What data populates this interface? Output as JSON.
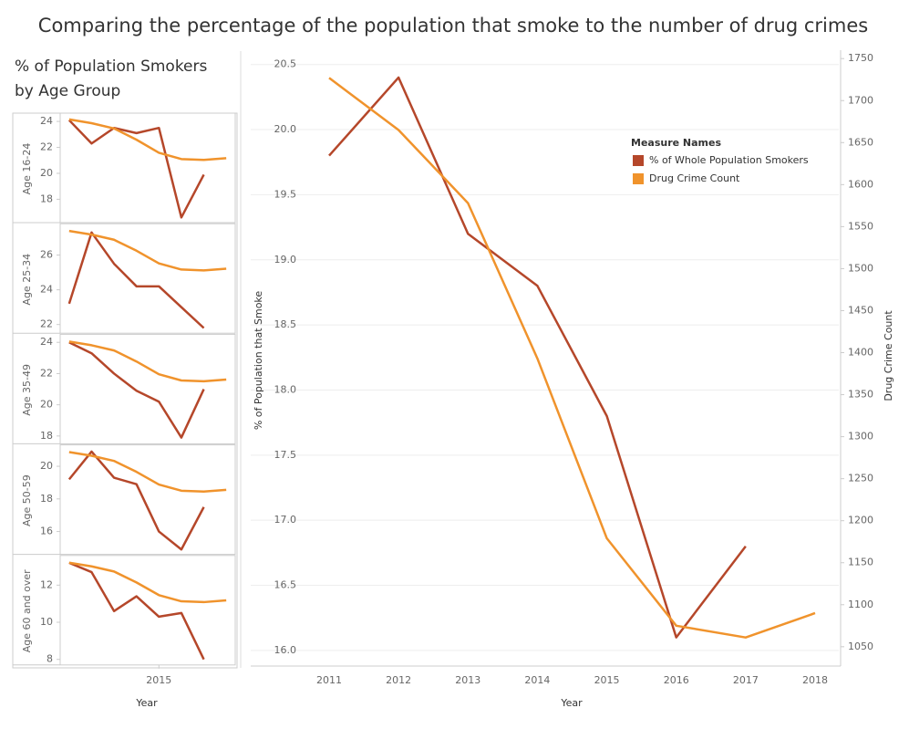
{
  "title": "Comparing the percentage of the population that smoke to the number of drug crimes",
  "panel_title": [
    "% of Population Smokers",
    "by Age Group"
  ],
  "chart_data": [
    {
      "type": "line",
      "xlabel": "Year",
      "ylabel": "% of Population that Smoke",
      "y2label": "Drug Crime Count",
      "legend_title": "Measure Names",
      "legend": "upper right",
      "categories": [
        "2011",
        "2012",
        "2013",
        "2014",
        "2015",
        "2016",
        "2017",
        "2018"
      ],
      "series": [
        {
          "name": "% of Whole Population Smokers",
          "color": "#b5472a",
          "values": [
            19.8,
            20.4,
            19.2,
            18.8,
            17.8,
            16.1,
            16.8,
            null
          ]
        },
        {
          "name": "Drug Crime Count",
          "color": "#f0932c",
          "axis": "y2",
          "values": [
            1727,
            1665,
            1578,
            1393,
            1179,
            1075,
            1061,
            1090
          ]
        }
      ],
      "ylim": [
        15.88,
        20.61
      ],
      "yticks": [
        {
          "value": 16,
          "label": "16.0"
        },
        16.5,
        {
          "value": 17,
          "label": "17.0"
        },
        17.5,
        {
          "value": 18,
          "label": "18.0"
        },
        18.5,
        {
          "value": 19,
          "label": "19.0"
        },
        19.5,
        {
          "value": 20,
          "label": "20.0"
        },
        20.5
      ],
      "y2lim": [
        1027,
        1760
      ],
      "y2ticks": [
        1050,
        1100,
        1150,
        1200,
        1250,
        1300,
        1350,
        1400,
        1450,
        1500,
        1550,
        1600,
        1650,
        1700,
        1750
      ],
      "grid": true
    },
    {
      "type": "line",
      "row_label": "Age 16-24",
      "x": [
        2011,
        2012,
        2013,
        2014,
        2015,
        2016,
        2017,
        2018
      ],
      "xlim": [
        2010.6,
        2018.4
      ],
      "xticks": [],
      "series": [
        {
          "color": "#b5472a",
          "values": [
            24.1,
            22.3,
            23.5,
            23.1,
            23.5,
            16.6,
            19.9,
            null
          ]
        },
        {
          "color": "#f0932c",
          "axis": "y2",
          "values": [
            1727,
            1665,
            1578,
            1393,
            1179,
            1075,
            1061,
            1090
          ]
        }
      ],
      "ylim": [
        16.2,
        24.5
      ],
      "yticks": [
        18,
        20,
        22,
        24
      ],
      "y2lim": [
        30,
        1800
      ]
    },
    {
      "type": "line",
      "row_label": "Age 25-34",
      "x": [
        2011,
        2012,
        2013,
        2014,
        2015,
        2016,
        2017,
        2018
      ],
      "xlim": [
        2010.6,
        2018.4
      ],
      "xticks": [],
      "series": [
        {
          "color": "#b5472a",
          "values": [
            23.2,
            27.3,
            25.5,
            24.2,
            24.2,
            23.0,
            21.8,
            null
          ]
        },
        {
          "color": "#f0932c",
          "axis": "y2",
          "values": [
            1727,
            1665,
            1578,
            1393,
            1179,
            1075,
            1061,
            1090
          ]
        }
      ],
      "ylim": [
        21.5,
        27.7
      ],
      "yticks": [
        22,
        24,
        26
      ],
      "y2lim": [
        0,
        1818
      ]
    },
    {
      "type": "line",
      "row_label": "Age 35-49",
      "x": [
        2011,
        2012,
        2013,
        2014,
        2015,
        2016,
        2017,
        2018
      ],
      "xlim": [
        2010.6,
        2018.4
      ],
      "xticks": [],
      "series": [
        {
          "color": "#b5472a",
          "values": [
            24.0,
            23.3,
            22.0,
            20.9,
            20.2,
            17.9,
            21.0,
            null
          ]
        },
        {
          "color": "#f0932c",
          "axis": "y2",
          "values": [
            1727,
            1665,
            1578,
            1393,
            1179,
            1075,
            1061,
            1090
          ]
        }
      ],
      "ylim": [
        17.5,
        24.4
      ],
      "yticks": [
        18,
        20,
        22,
        24
      ],
      "y2lim": [
        14,
        1818
      ]
    },
    {
      "type": "line",
      "row_label": "Age 50-59",
      "x": [
        2011,
        2012,
        2013,
        2014,
        2015,
        2016,
        2017,
        2018
      ],
      "xlim": [
        2010.6,
        2018.4
      ],
      "xticks": [],
      "series": [
        {
          "color": "#b5472a",
          "values": [
            19.2,
            20.9,
            19.3,
            18.9,
            16.0,
            14.9,
            17.5,
            null
          ]
        },
        {
          "color": "#f0932c",
          "axis": "y2",
          "values": [
            1727,
            1665,
            1578,
            1393,
            1179,
            1075,
            1061,
            1090
          ]
        }
      ],
      "ylim": [
        14.6,
        21.2
      ],
      "yticks": [
        16,
        18,
        20
      ],
      "y2lim": [
        0,
        1818
      ]
    },
    {
      "type": "line",
      "row_label": "Age 60 and over",
      "xlabel": "Year",
      "x": [
        2011,
        2012,
        2013,
        2014,
        2015,
        2016,
        2017,
        2018
      ],
      "xlim": [
        2010.6,
        2018.4
      ],
      "xticks": [
        2015
      ],
      "series": [
        {
          "color": "#b5472a",
          "values": [
            13.2,
            12.7,
            10.6,
            11.4,
            10.3,
            10.5,
            8.0,
            null
          ]
        },
        {
          "color": "#f0932c",
          "axis": "y2",
          "values": [
            1727,
            1665,
            1578,
            1393,
            1179,
            1075,
            1061,
            1090
          ]
        }
      ],
      "ylim": [
        7.7,
        13.5
      ],
      "yticks": [
        8,
        10,
        12
      ],
      "y2lim": [
        0,
        1818
      ]
    }
  ]
}
